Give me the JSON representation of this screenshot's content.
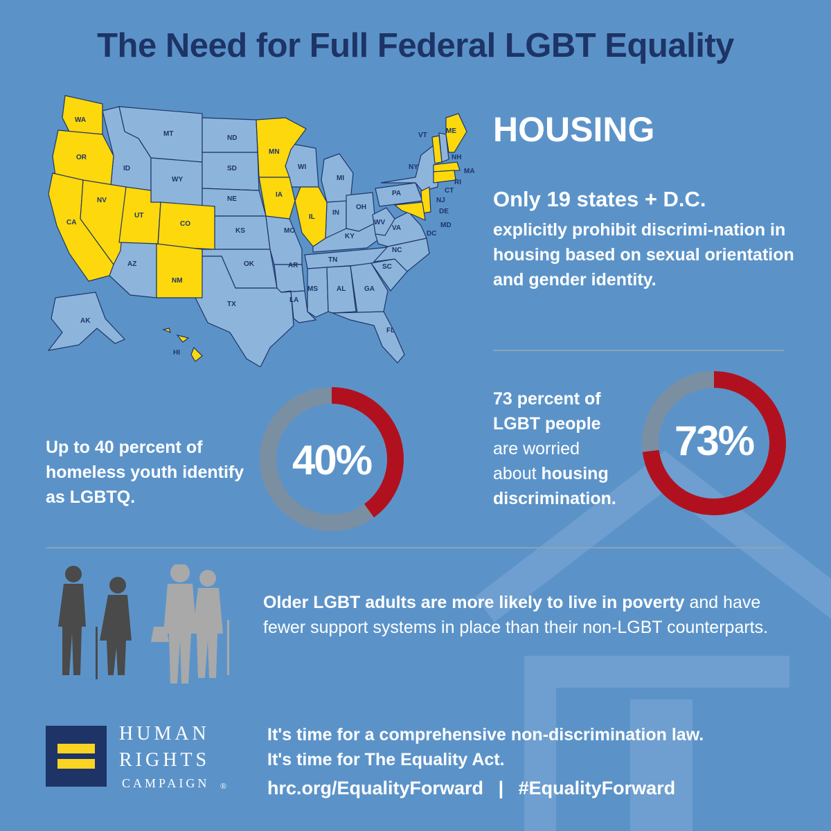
{
  "title": "The Need for Full Federal LGBT Equality",
  "section_title": "HOUSING",
  "states_stat": {
    "headline": "Only 19 states + D.C.",
    "body": "explicitly prohibit discrimi-nation in housing based on sexual orientation and gender identity."
  },
  "map": {
    "protected_color": "#fcd80c",
    "other_color": "#8db5dc",
    "labels": [
      "WA",
      "OR",
      "CA",
      "NV",
      "ID",
      "MT",
      "WY",
      "UT",
      "CO",
      "AZ",
      "NM",
      "ND",
      "SD",
      "NE",
      "KS",
      "OK",
      "TX",
      "MN",
      "IA",
      "MO",
      "AR",
      "LA",
      "WI",
      "IL",
      "MI",
      "IN",
      "OH",
      "KY",
      "TN",
      "MS",
      "AL",
      "GA",
      "FL",
      "SC",
      "NC",
      "VA",
      "WV",
      "PA",
      "NY",
      "VT",
      "NH",
      "ME",
      "MA",
      "RI",
      "CT",
      "NJ",
      "DE",
      "MD",
      "DC",
      "AK",
      "HI"
    ],
    "protected": [
      "WA",
      "OR",
      "CA",
      "NV",
      "UT",
      "CO",
      "NM",
      "MN",
      "IA",
      "IL",
      "ME",
      "VT",
      "MA",
      "RI",
      "CT",
      "NJ",
      "DE",
      "MD",
      "DC",
      "HI"
    ]
  },
  "youth_stat": {
    "text": "Up to 40 percent of homeless youth identify as LGBTQ.",
    "percent_label": "40%",
    "value": 40
  },
  "worry_stat": {
    "line1": "73 percent of",
    "line2": "LGBT people",
    "line3": "are worried",
    "line4_a": "about ",
    "line4_b": "housing",
    "line5": "discrimination.",
    "percent_label": "73%",
    "value": 73
  },
  "donut_colors": {
    "fill": "#b1111f",
    "track": "#7b8fa3"
  },
  "older_stat": {
    "bold": "Older LGBT adults are more likely to live in poverty",
    "rest": "and have fewer support systems in place than their non-LGBT counterparts."
  },
  "logo": {
    "line1": "HUMAN",
    "line2": "RIGHTS",
    "line3": "CAMPAIGN",
    "mark": "®"
  },
  "cta": {
    "line1": "It's time for a comprehensive non-discrimination law.",
    "line2": "It's time for The Equality Act."
  },
  "links": {
    "site": "hrc.org/EqualityForward",
    "separator": "|",
    "hashtag": "#EqualityForward"
  }
}
